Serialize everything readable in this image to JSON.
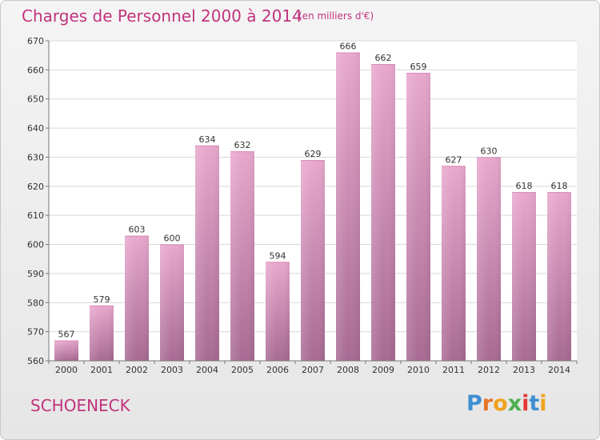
{
  "header": {
    "title": "Charges de Personnel 2000 à 2014",
    "subtitle": "(en milliers d'€)"
  },
  "footer": {
    "commune": "SCHOENECK",
    "logo_text": "Proxiti"
  },
  "colors": {
    "title": "#c1337e",
    "bar_top": "#e9a8cd",
    "bar_bottom": "#a86a94",
    "grid": "#d9d9d9",
    "axis": "#777777"
  },
  "chart_data": {
    "type": "bar",
    "title": "Charges de Personnel 2000 à 2014",
    "subtitle": "(en milliers d'€)",
    "categories": [
      "2000",
      "2001",
      "2002",
      "2003",
      "2004",
      "2005",
      "2006",
      "2007",
      "2008",
      "2009",
      "2010",
      "2011",
      "2012",
      "2013",
      "2014"
    ],
    "values": [
      567,
      579,
      603,
      600,
      634,
      632,
      594,
      629,
      666,
      662,
      659,
      627,
      630,
      618,
      618
    ],
    "ylim": [
      560,
      670
    ],
    "yticks": [
      560,
      570,
      580,
      590,
      600,
      610,
      620,
      630,
      640,
      650,
      660,
      670
    ],
    "grid": true,
    "xlabel": "",
    "ylabel": ""
  }
}
